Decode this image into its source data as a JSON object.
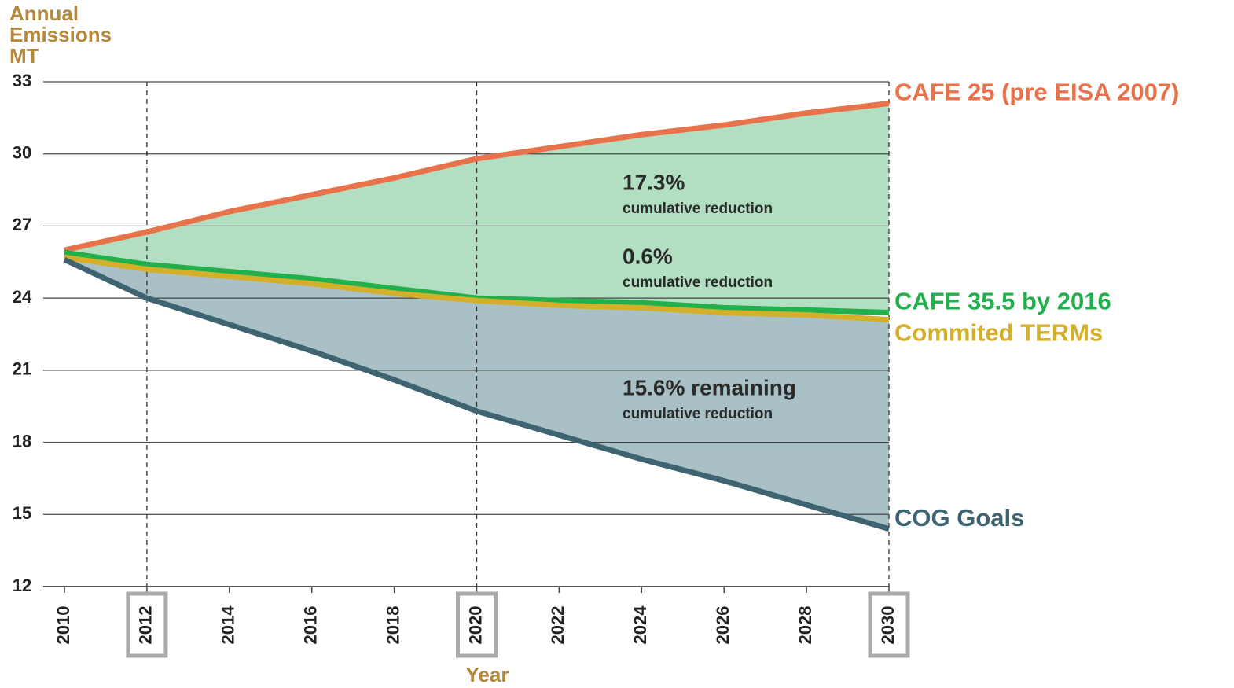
{
  "chart_data": {
    "type": "line",
    "ylabel": [
      "Annual",
      "Emissions",
      "MT"
    ],
    "xlabel": "Year",
    "x": [
      2010,
      2012,
      2014,
      2016,
      2018,
      2020,
      2022,
      2024,
      2026,
      2028,
      2030
    ],
    "series": [
      {
        "name": "CAFE 25 (pre EISA 2007)",
        "color": "#e8734a",
        "fill": "#b2dfc2",
        "values": [
          26.0,
          26.75,
          27.6,
          28.3,
          29.0,
          29.8,
          30.3,
          30.8,
          31.2,
          31.7,
          32.1
        ]
      },
      {
        "name": "CAFE 35.5 by 2016",
        "color": "#21b04b",
        "values": [
          25.9,
          25.4,
          25.1,
          24.8,
          24.4,
          24.0,
          23.9,
          23.8,
          23.6,
          23.5,
          23.4
        ]
      },
      {
        "name": "Commited TERMs",
        "color": "#d4b02a",
        "fill": "#a9c1c6",
        "values": [
          25.7,
          25.2,
          24.9,
          24.6,
          24.2,
          23.9,
          23.7,
          23.6,
          23.4,
          23.3,
          23.1
        ]
      },
      {
        "name": "COG Goals",
        "color": "#3d6470",
        "values": [
          25.6,
          24.0,
          22.9,
          21.8,
          20.6,
          19.3,
          18.3,
          17.3,
          16.4,
          15.4,
          14.4
        ]
      }
    ],
    "annotations": [
      {
        "text": "17.3%",
        "sub": "cumulative reduction"
      },
      {
        "text": "0.6%",
        "sub": "cumulative reduction"
      },
      {
        "text": "15.6% remaining",
        "sub": "cumulative reduction"
      }
    ],
    "xlim": [
      2010,
      2030
    ],
    "xticks": [
      2010,
      2012,
      2014,
      2016,
      2018,
      2020,
      2022,
      2024,
      2026,
      2028,
      2030
    ],
    "highlight_years": [
      2012,
      2020,
      2030
    ],
    "ylim": [
      12,
      33
    ],
    "yticks": [
      12,
      15,
      18,
      21,
      24,
      27,
      30,
      33
    ],
    "grid": true
  }
}
